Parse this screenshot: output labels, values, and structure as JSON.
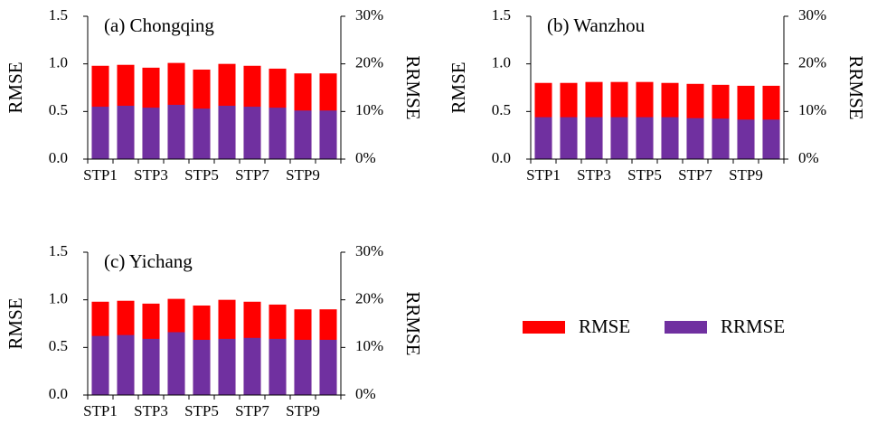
{
  "chart_data": [
    {
      "type": "bar",
      "title": "(a) Chongqing",
      "categories": [
        "STP1",
        null,
        "STP3",
        null,
        "STP5",
        null,
        "STP7",
        null,
        "STP9",
        null
      ],
      "ylabel": "RMSE",
      "y2label": "RRMSE",
      "ylim": [
        0,
        1.5
      ],
      "yticks": [
        {
          "value": 0,
          "label": "0.0"
        },
        0.5,
        {
          "value": 1,
          "label": "1.0"
        },
        1.5
      ],
      "y2lim": [
        0,
        30
      ],
      "y2ticks": [
        {
          "value": 0,
          "label": "0%"
        },
        {
          "value": 10,
          "label": "10%"
        },
        {
          "value": 20,
          "label": "20%"
        },
        {
          "value": 30,
          "label": "30%"
        }
      ],
      "series": [
        {
          "name": "RMSE",
          "color": "#ff0000",
          "values": [
            0.98,
            0.99,
            0.96,
            1.01,
            0.94,
            1.0,
            0.98,
            0.95,
            0.9,
            0.9
          ]
        },
        {
          "name": "RRMSE",
          "color": "#7030a0",
          "axis": "y2",
          "values": [
            11.0,
            11.2,
            10.8,
            11.4,
            10.6,
            11.2,
            11.0,
            10.8,
            10.2,
            10.2
          ]
        }
      ]
    },
    {
      "type": "bar",
      "title": "(b) Wanzhou",
      "categories": [
        "STP1",
        null,
        "STP3",
        null,
        "STP5",
        null,
        "STP7",
        null,
        "STP9",
        null
      ],
      "ylabel": "RMSE",
      "y2label": "RRMSE",
      "ylim": [
        0,
        1.5
      ],
      "yticks": [
        {
          "value": 0,
          "label": "0.0"
        },
        0.5,
        {
          "value": 1,
          "label": "1.0"
        },
        1.5
      ],
      "y2lim": [
        0,
        30
      ],
      "y2ticks": [
        {
          "value": 0,
          "label": "0%"
        },
        {
          "value": 10,
          "label": "10%"
        },
        {
          "value": 20,
          "label": "20%"
        },
        {
          "value": 30,
          "label": "30%"
        }
      ],
      "series": [
        {
          "name": "RMSE",
          "color": "#ff0000",
          "values": [
            0.8,
            0.8,
            0.81,
            0.81,
            0.81,
            0.8,
            0.79,
            0.78,
            0.77,
            0.77
          ]
        },
        {
          "name": "RRMSE",
          "color": "#7030a0",
          "axis": "y2",
          "values": [
            8.8,
            8.8,
            8.8,
            8.8,
            8.8,
            8.8,
            8.6,
            8.5,
            8.3,
            8.3
          ]
        }
      ]
    },
    {
      "type": "bar",
      "title": "(c) Yichang",
      "categories": [
        "STP1",
        null,
        "STP3",
        null,
        "STP5",
        null,
        "STP7",
        null,
        "STP9",
        null
      ],
      "ylabel": "RMSE",
      "y2label": "RRMSE",
      "ylim": [
        0,
        1.5
      ],
      "yticks": [
        {
          "value": 0,
          "label": "0.0"
        },
        0.5,
        {
          "value": 1,
          "label": "1.0"
        },
        1.5
      ],
      "y2lim": [
        0,
        30
      ],
      "y2ticks": [
        {
          "value": 0,
          "label": "0%"
        },
        {
          "value": 10,
          "label": "10%"
        },
        {
          "value": 20,
          "label": "20%"
        },
        {
          "value": 30,
          "label": "30%"
        }
      ],
      "series": [
        {
          "name": "RMSE",
          "color": "#ff0000",
          "values": [
            0.98,
            0.99,
            0.96,
            1.01,
            0.94,
            1.0,
            0.98,
            0.95,
            0.9,
            0.9
          ]
        },
        {
          "name": "RRMSE",
          "color": "#7030a0",
          "axis": "y2",
          "values": [
            12.4,
            12.6,
            11.8,
            13.2,
            11.6,
            11.8,
            12.0,
            11.8,
            11.6,
            11.6
          ]
        }
      ]
    }
  ]
}
